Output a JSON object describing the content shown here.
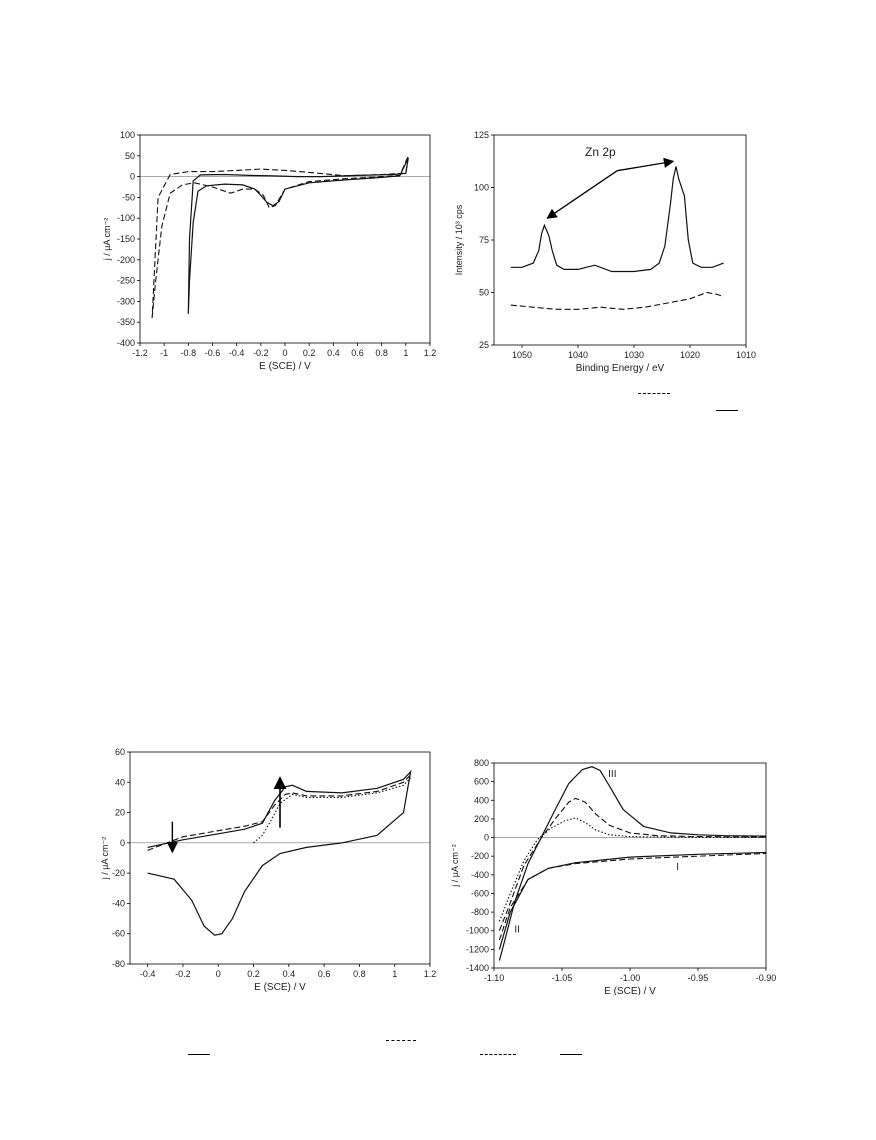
{
  "chart_data": [
    {
      "type": "line",
      "xlabel": "E (SCE) / V",
      "ylabel": "j / µA cm⁻²",
      "xlim": [
        -1.2,
        1.2
      ],
      "ylim": [
        -400,
        100
      ],
      "xticks": [
        -1.2,
        -1,
        -0.8,
        -0.6,
        -0.4,
        -0.2,
        0,
        0.2,
        0.4,
        0.6,
        0.8,
        1,
        1.2
      ],
      "yticks": [
        -400,
        -350,
        -300,
        -250,
        -200,
        -150,
        -100,
        -50,
        0,
        50,
        100
      ],
      "series": [
        {
          "style": "solid",
          "x": [
            -0.8,
            -0.79,
            -0.76,
            -0.72,
            -0.65,
            -0.5,
            -0.35,
            -0.25,
            -0.2,
            -0.15,
            -0.1,
            -0.05,
            0.0,
            0.2,
            0.5,
            0.8,
            0.95,
            1.02,
            1.0,
            0.9,
            0.6,
            0.3,
            0.1,
            -0.1,
            -0.3,
            -0.5,
            -0.7,
            -0.76,
            -0.79,
            -0.8
          ],
          "y": [
            -330,
            -250,
            -110,
            -35,
            -22,
            -18,
            -20,
            -30,
            -45,
            -62,
            -70,
            -60,
            -30,
            -15,
            -8,
            -2,
            2,
            45,
            8,
            5,
            3,
            0,
            0,
            2,
            3,
            5,
            4,
            -10,
            -150,
            -330
          ]
        },
        {
          "style": "dashed",
          "x": [
            -1.1,
            -1.07,
            -1.02,
            -0.95,
            -0.85,
            -0.75,
            -0.6,
            -0.45,
            -0.35,
            -0.25,
            -0.18,
            -0.13,
            -0.08,
            0.0,
            0.2,
            0.5,
            0.8,
            0.95,
            1.02,
            1.0,
            0.8,
            0.5,
            0.2,
            0.0,
            -0.2,
            -0.4,
            -0.6,
            -0.8,
            -0.95,
            -1.05,
            -1.1
          ],
          "y": [
            -340,
            -250,
            -120,
            -40,
            -20,
            -15,
            -25,
            -40,
            -30,
            -30,
            -45,
            -75,
            -70,
            -30,
            -12,
            -5,
            0,
            3,
            50,
            8,
            5,
            2,
            10,
            15,
            18,
            15,
            12,
            12,
            5,
            -50,
            -340
          ]
        }
      ]
    },
    {
      "type": "line",
      "xlabel": "Binding Energy / eV",
      "ylabel": "Intensity / 10³ cps",
      "xlim": [
        1055,
        1010
      ],
      "ylim": [
        25,
        125
      ],
      "xticks": [
        1050,
        1040,
        1030,
        1020,
        1010
      ],
      "yticks": [
        25,
        50,
        75,
        100,
        125
      ],
      "annotation": "Zn 2p",
      "series": [
        {
          "style": "solid",
          "x": [
            1052,
            1050,
            1048,
            1047,
            1046.5,
            1046,
            1045.2,
            1044.6,
            1043.8,
            1042.5,
            1040,
            1037,
            1034,
            1030,
            1027,
            1025.5,
            1024.5,
            1023.5,
            1023,
            1022.5,
            1022,
            1021,
            1020.3,
            1019.5,
            1018,
            1016,
            1015,
            1014
          ],
          "y": [
            62,
            62,
            64,
            70,
            78,
            82,
            77,
            70,
            63,
            61,
            61,
            63,
            60,
            60,
            61,
            64,
            72,
            92,
            104,
            110,
            104,
            96,
            75,
            64,
            62,
            62,
            63,
            64
          ]
        },
        {
          "style": "dashed",
          "x": [
            1052,
            1048,
            1044,
            1040,
            1036,
            1032,
            1028,
            1024,
            1020,
            1017,
            1015,
            1014
          ],
          "y": [
            44,
            43,
            42,
            42,
            43,
            42,
            43,
            45,
            47,
            50,
            49,
            48
          ]
        }
      ]
    },
    {
      "type": "line",
      "xlabel": "E (SCE) / V",
      "ylabel": "j / µA cm⁻²",
      "xlim": [
        -0.5,
        1.2
      ],
      "ylim": [
        -80,
        60
      ],
      "xticks": [
        -0.4,
        -0.2,
        0,
        0.2,
        0.4,
        0.6,
        0.8,
        1,
        1.2
      ],
      "yticks": [
        -80,
        -60,
        -40,
        -20,
        0,
        20,
        40,
        60
      ],
      "series": [
        {
          "style": "solid",
          "x": [
            -0.4,
            -0.2,
            0.0,
            0.15,
            0.25,
            0.32,
            0.38,
            0.42,
            0.5,
            0.7,
            0.9,
            1.05,
            1.09,
            1.05,
            0.9,
            0.7,
            0.5,
            0.35,
            0.25,
            0.15,
            0.08,
            0.02,
            -0.02,
            -0.08,
            -0.15,
            -0.25,
            -0.4
          ],
          "y": [
            -3,
            2,
            6,
            9,
            13,
            28,
            37,
            38,
            34,
            33,
            36,
            42,
            47,
            20,
            5,
            0,
            -3,
            -7,
            -15,
            -32,
            -50,
            -60,
            -61,
            -55,
            -38,
            -24,
            -20
          ]
        },
        {
          "style": "dashed",
          "x": [
            -0.4,
            -0.2,
            0.0,
            0.15,
            0.25,
            0.32,
            0.38,
            0.42,
            0.5,
            0.7,
            0.9,
            1.05,
            1.09
          ],
          "y": [
            -5,
            4,
            8,
            11,
            14,
            25,
            32,
            33,
            31,
            31,
            34,
            40,
            45
          ]
        },
        {
          "style": "dotted",
          "x": [
            0.2,
            0.25,
            0.3,
            0.35,
            0.42,
            0.5,
            0.7,
            0.9,
            1.05,
            1.09
          ],
          "y": [
            0,
            5,
            15,
            26,
            32,
            30,
            30,
            33,
            38,
            43
          ]
        }
      ]
    },
    {
      "type": "line",
      "xlabel": "E (SCE) / V",
      "ylabel": "j / µA cm⁻²",
      "xlim": [
        -1.1,
        -0.9
      ],
      "ylim": [
        -1400,
        800
      ],
      "xticks": [
        -1.1,
        -1.05,
        -1.0,
        -0.95,
        -0.9
      ],
      "yticks": [
        -1400,
        -1200,
        -1000,
        -800,
        -600,
        -400,
        -200,
        0,
        200,
        400,
        600,
        800
      ],
      "labels": [
        "I",
        "II",
        "III"
      ],
      "series": [
        {
          "style": "solid",
          "x": [
            -1.096,
            -1.092,
            -1.085,
            -1.075,
            -1.065,
            -1.055,
            -1.045,
            -1.035,
            -1.028,
            -1.022,
            -1.015,
            -1.005,
            -0.99,
            -0.97,
            -0.95,
            -0.93,
            -0.9
          ],
          "y": [
            -1320,
            -1100,
            -700,
            -280,
            10,
            300,
            580,
            730,
            760,
            720,
            550,
            300,
            120,
            50,
            30,
            20,
            15
          ]
        },
        {
          "style": "dashed",
          "x": [
            -1.096,
            -1.088,
            -1.078,
            -1.065,
            -1.055,
            -1.045,
            -1.04,
            -1.033,
            -1.025,
            -1.015,
            -1.0,
            -0.98,
            -0.95,
            -0.9
          ],
          "y": [
            -1000,
            -700,
            -300,
            0,
            200,
            380,
            420,
            380,
            250,
            130,
            50,
            20,
            10,
            5
          ]
        },
        {
          "style": "dotted",
          "x": [
            -1.096,
            -1.088,
            -1.078,
            -1.068,
            -1.058,
            -1.048,
            -1.04,
            -1.033,
            -1.025,
            -1.015,
            -1.0,
            -0.98,
            -0.95,
            -0.9
          ],
          "y": [
            -900,
            -600,
            -250,
            -20,
            100,
            180,
            210,
            160,
            80,
            30,
            10,
            5,
            2,
            0
          ]
        },
        {
          "style": "solid",
          "x": [
            -1.096,
            -1.088,
            -1.075,
            -1.06,
            -1.04,
            -1.0,
            -0.95,
            -0.9
          ],
          "y": [
            -1200,
            -800,
            -450,
            -330,
            -270,
            -210,
            -180,
            -160
          ]
        },
        {
          "style": "dashed",
          "x": [
            -1.096,
            -1.088,
            -1.075,
            -1.06,
            -1.04,
            -1.0,
            -0.95,
            -0.9
          ],
          "y": [
            -1100,
            -750,
            -450,
            -330,
            -280,
            -230,
            -200,
            -170
          ]
        }
      ]
    }
  ]
}
